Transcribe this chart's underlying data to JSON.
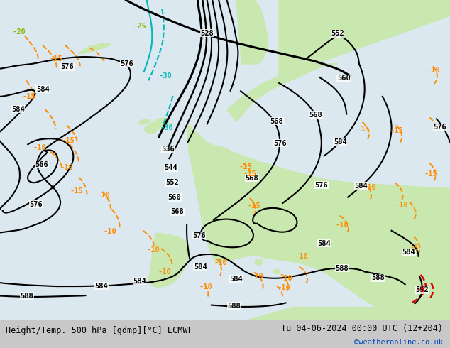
{
  "title_left": "Height/Temp. 500 hPa [gdmp][°C] ECMWF",
  "title_right": "Tu 04-06-2024 00:00 UTC (12+204)",
  "credit": "©weatheronline.co.uk",
  "bg_color": "#f0f0f0",
  "land_color": "#c8e8b0",
  "sea_color": "#dce8f0",
  "border_color": "#b0b0b0",
  "bottom_bar_color": "#c8c8c8",
  "text_color": "#000000",
  "credit_color": "#0044bb",
  "bottom_bar_height": 0.082,
  "figsize": [
    6.34,
    4.9
  ],
  "dpi": 100,
  "font_size_title": 8.5,
  "font_size_credit": 7.5,
  "black": "#000000",
  "cyan": "#00b8b8",
  "orange": "#ff8c00",
  "red": "#dd0000",
  "ygreen": "#88bb00"
}
